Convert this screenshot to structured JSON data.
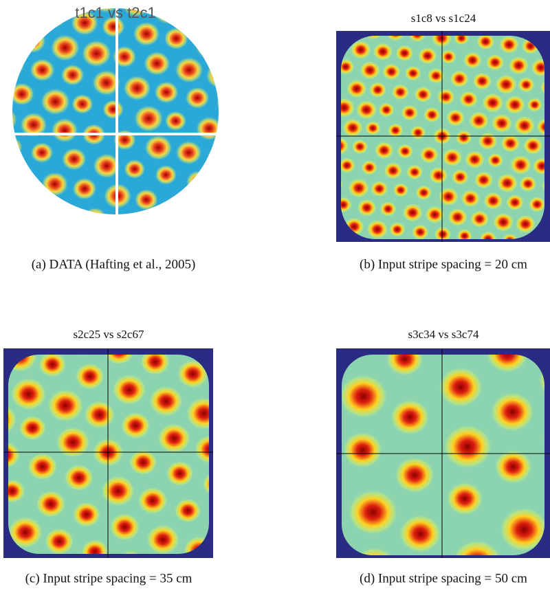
{
  "panels": [
    {
      "title": "t1c1 vs t2c1",
      "caption": "(a) DATA (Hafting et al., 2005)"
    },
    {
      "title": "s1c8 vs s1c24",
      "caption": "(b) Input stripe spacing = 20 cm"
    },
    {
      "title": "s2c25 vs s2c67",
      "caption": "(c) Input stripe spacing = 35 cm"
    },
    {
      "title": "s3c34 vs s3c74",
      "caption": "(d) Input stripe spacing = 50 cm"
    }
  ]
}
